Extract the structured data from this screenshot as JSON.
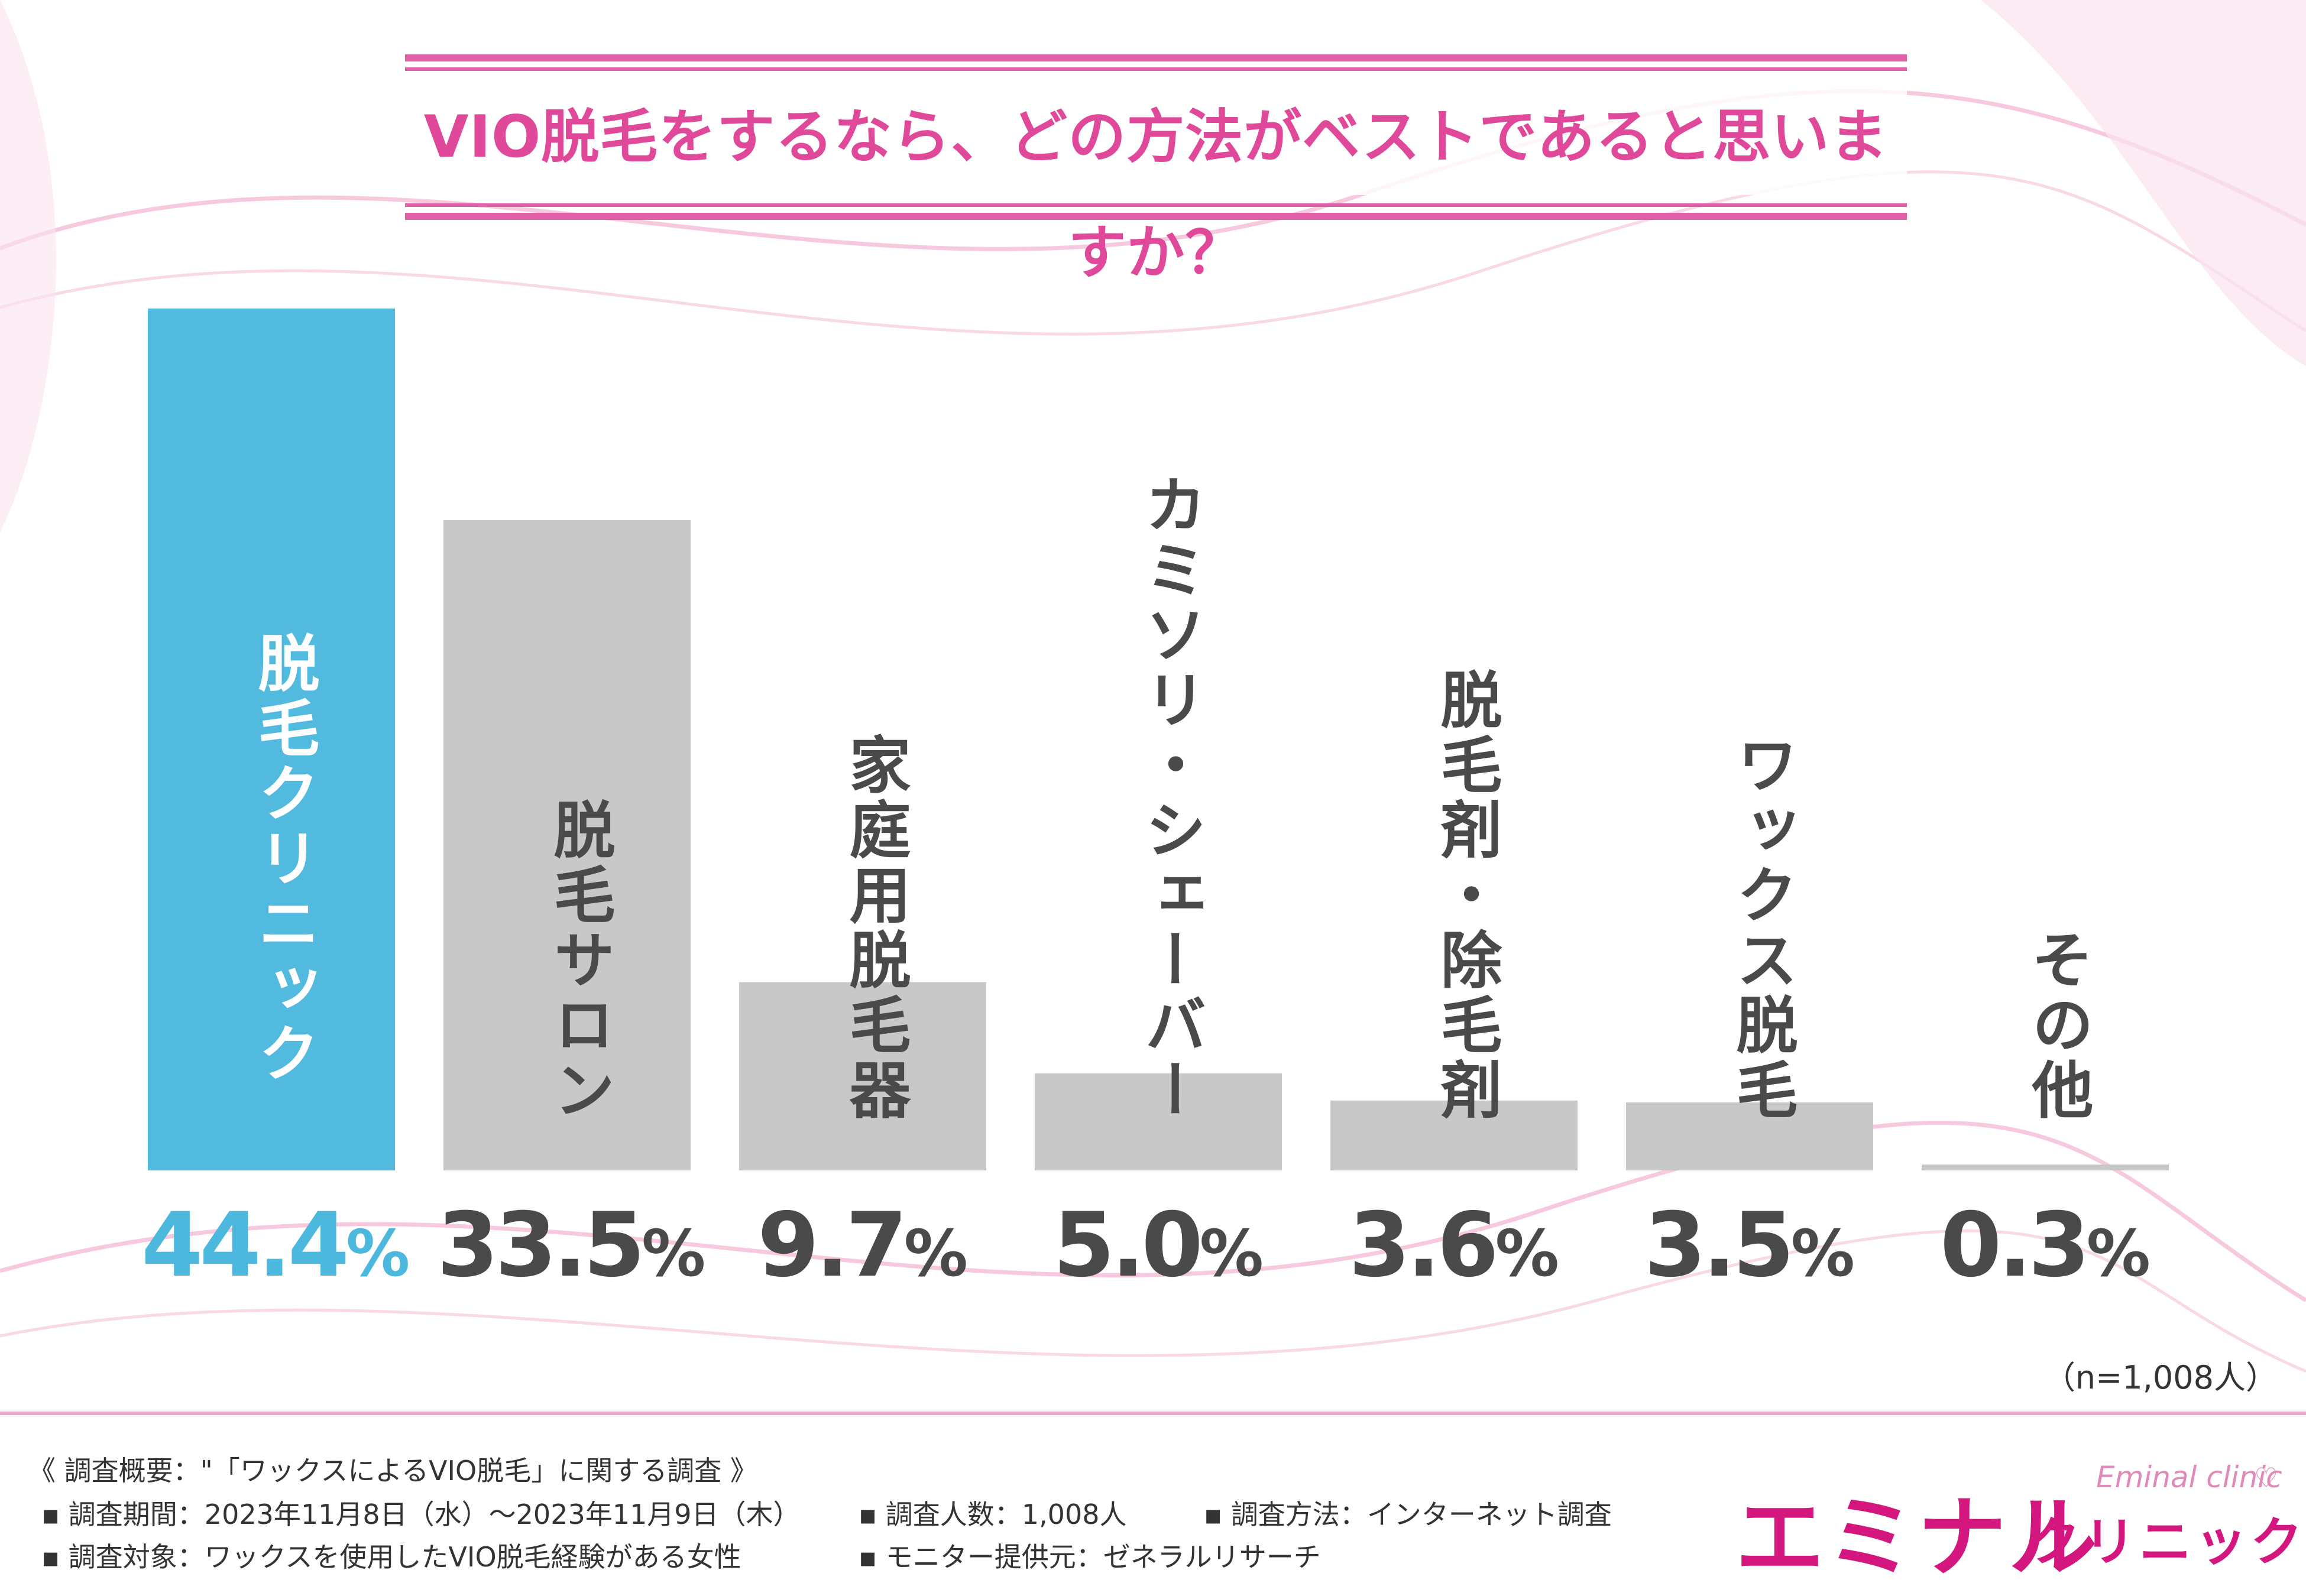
{
  "title": "VIO脱毛をするなら、どの方法がベストであると思いますか？",
  "sample_size": "（n=1,008人）",
  "colors": {
    "highlight": "#52b9df",
    "bar": "#c8c8c8",
    "accent": "#e0489a"
  },
  "chart_data": {
    "type": "bar",
    "title": "VIO脱毛をするなら、どの方法がベストであると思いますか？",
    "categories": [
      "脱毛クリニック",
      "脱毛サロン",
      "家庭用脱毛器",
      "カミソリ・シェーバー",
      "脱毛剤・除毛剤",
      "ワックス脱毛",
      "その他"
    ],
    "values": [
      44.4,
      33.5,
      9.7,
      5.0,
      3.6,
      3.5,
      0.3
    ],
    "value_labels": [
      {
        "num": "44.4",
        "unit": "%"
      },
      {
        "num": "33.5",
        "unit": "%"
      },
      {
        "num": "9.7",
        "unit": "%"
      },
      {
        "num": "5.0",
        "unit": "%"
      },
      {
        "num": "3.6",
        "unit": "%"
      },
      {
        "num": "3.5",
        "unit": "%"
      },
      {
        "num": "0.3",
        "unit": "%"
      }
    ],
    "highlight_index": 0,
    "ylim": [
      0,
      44.4
    ],
    "grid": false,
    "legend": "none",
    "xlabel": "",
    "ylabel": ""
  },
  "footer": {
    "summary": "《 調査概要：\"「ワックスによるVIO脱毛」に関する調査 》",
    "period": "▪ 調査期間：2023年11月8日（水）～2023年11月9日（木）",
    "count": "▪ 調査人数：1,008人",
    "method": "▪ 調査方法：インターネット調査",
    "target": "▪ 調査対象：ワックスを使用したVIO脱毛経験がある女性",
    "provider": "▪ モニター提供元：ゼネラルリサーチ"
  },
  "logo": {
    "en": "Eminal clinic",
    "jp_main": "エミナル",
    "jp_sub": "クリニック"
  }
}
